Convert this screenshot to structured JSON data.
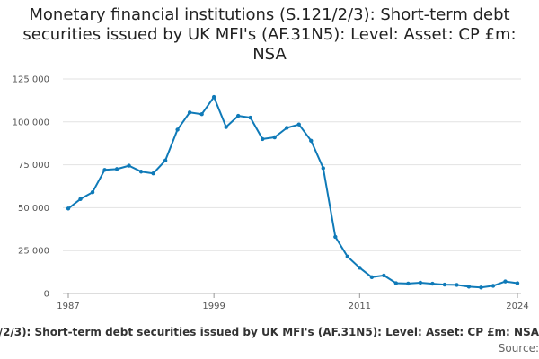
{
  "chart_data": {
    "type": "line",
    "title": "Monetary financial institutions (S.121/2/3): Short-term debt securities issued by UK MFI's (AF.31N5): Level: Asset: CP £m: NSA",
    "xlabel": "",
    "ylabel": "",
    "series": [
      {
        "name": "Monetary financial institutions (S.121/2/3): Short-term debt securities issued by UK MFI's (AF.31N5): Level: Asset: CP £m: NSA",
        "color": "#0f7ab8",
        "x": [
          1987,
          1988,
          1989,
          1990,
          1991,
          1992,
          1993,
          1994,
          1995,
          1996,
          1997,
          1998,
          1999,
          2000,
          2001,
          2002,
          2003,
          2004,
          2005,
          2006,
          2007,
          2008,
          2009,
          2010,
          2011,
          2012,
          2013,
          2014,
          2015,
          2016,
          2017,
          2018,
          2019,
          2020,
          2021,
          2022,
          2023,
          2024
        ],
        "values": [
          49500,
          55000,
          59000,
          72000,
          72500,
          74500,
          71000,
          70000,
          77500,
          95500,
          105500,
          104500,
          114500,
          97000,
          103500,
          102500,
          90000,
          91000,
          96500,
          98500,
          89000,
          73000,
          33000,
          21500,
          15000,
          9500,
          10500,
          6000,
          5800,
          6300,
          5700,
          5200,
          5000,
          4000,
          3500,
          4500,
          7000,
          6000
        ]
      }
    ],
    "yticks": [
      "0",
      "25 000",
      "50 000",
      "75 000",
      "100 000",
      "125 000"
    ],
    "ytick_values": [
      0,
      25000,
      50000,
      75000,
      100000,
      125000
    ],
    "xticks": [
      "1987",
      "1999",
      "2011",
      "2024"
    ],
    "xtick_values": [
      1987,
      1999,
      2011,
      2024
    ],
    "xlim": [
      1987,
      2024
    ],
    "ylim": [
      0,
      125000
    ],
    "grid": "horizontal",
    "source": "Source:"
  }
}
